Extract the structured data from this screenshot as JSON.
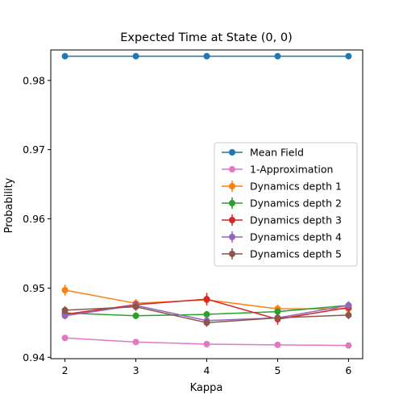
{
  "chart_data": {
    "type": "line",
    "title": "Expected Time at State (0, 0)",
    "xlabel": "Kappa",
    "ylabel": "Probability",
    "x": [
      2,
      3,
      4,
      5,
      6
    ],
    "xlim": [
      1.8,
      6.2
    ],
    "ylim": [
      0.9398,
      0.9844
    ],
    "xticks": [
      2,
      3,
      4,
      5,
      6
    ],
    "yticks": [
      0.94,
      0.95,
      0.96,
      0.97,
      0.98
    ],
    "legend_position": "center-right",
    "grid": false,
    "series": [
      {
        "name": "Mean Field",
        "color": "#1f77b4",
        "values": [
          0.9835,
          0.9835,
          0.9835,
          0.9835,
          0.9835
        ],
        "errors": null
      },
      {
        "name": "1-Approximation",
        "color": "#e377c2",
        "values": [
          0.9428,
          0.9422,
          0.9419,
          0.9418,
          0.9417
        ],
        "errors": null
      },
      {
        "name": "Dynamics depth 1",
        "color": "#ff7f0e",
        "values": [
          0.9497,
          0.9478,
          0.9483,
          0.947,
          0.947
        ],
        "errors": [
          0.0008,
          0.0006,
          0.0006,
          0.0006,
          0.0006
        ]
      },
      {
        "name": "Dynamics depth 2",
        "color": "#2ca02c",
        "values": [
          0.9464,
          0.946,
          0.9462,
          0.9466,
          0.9475
        ],
        "errors": [
          0.0005,
          0.0005,
          0.0005,
          0.0005,
          0.0005
        ]
      },
      {
        "name": "Dynamics depth 3",
        "color": "#d62728",
        "values": [
          0.9462,
          0.9476,
          0.9484,
          0.9455,
          0.9472
        ],
        "errors": [
          0.0005,
          0.0005,
          0.0009,
          0.0008,
          0.0006
        ]
      },
      {
        "name": "Dynamics depth 4",
        "color": "#9467bd",
        "values": [
          0.946,
          0.9475,
          0.9453,
          0.9457,
          0.9475
        ],
        "errors": [
          0.0005,
          0.0005,
          0.0005,
          0.0005,
          0.0006
        ]
      },
      {
        "name": "Dynamics depth 5",
        "color": "#8c564b",
        "values": [
          0.9468,
          0.9473,
          0.945,
          0.9457,
          0.9461
        ],
        "errors": [
          0.0006,
          0.0006,
          0.0006,
          0.0005,
          0.0006
        ]
      }
    ]
  }
}
